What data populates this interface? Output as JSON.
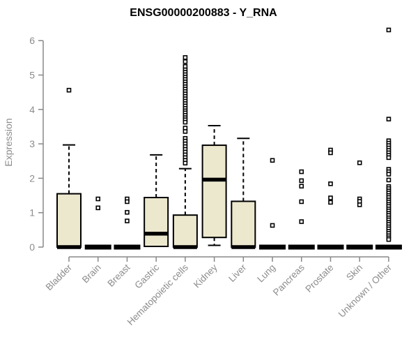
{
  "chart_data": {
    "type": "boxplot",
    "title": "ENSG00000200883 - Y_RNA",
    "ylabel": "Expression",
    "xlabel": "",
    "ylim": [
      0,
      6
    ],
    "yticks": [
      0,
      1,
      2,
      3,
      4,
      5,
      6
    ],
    "grid": false,
    "legend": "none",
    "colors": {
      "box_fill": "#ece8ce",
      "box_stroke": "#000000",
      "axis_line": "#888888",
      "tick_text": "#8c8c8c",
      "title_text": "#000000"
    },
    "categories": [
      "Bladder",
      "Brain",
      "Breast",
      "Gastric",
      "Hematopoietic cells",
      "Kidney",
      "Liver",
      "Lung",
      "Pancreas",
      "Prostate",
      "Skin",
      "Unknown / Other"
    ],
    "series": [
      {
        "label": "Bladder",
        "low": 0,
        "q1": 0,
        "median": 0,
        "q3": 1.55,
        "high": 2.97,
        "outliers": [
          4.56
        ]
      },
      {
        "label": "Brain",
        "low": 0,
        "q1": 0,
        "median": 0,
        "q3": 0,
        "high": 0,
        "outliers": [
          1.4,
          1.14
        ]
      },
      {
        "label": "Breast",
        "low": 0,
        "q1": 0,
        "median": 0,
        "q3": 0,
        "high": 0,
        "outliers": [
          1.4,
          1.32,
          1.01,
          0.76
        ]
      },
      {
        "label": "Gastric",
        "low": 0.02,
        "q1": 0.02,
        "median": 0.39,
        "q3": 1.44,
        "high": 2.68,
        "outliers": []
      },
      {
        "label": "Hematopoietic cells",
        "low": 0,
        "q1": 0,
        "median": 0,
        "q3": 0.93,
        "high": 2.28,
        "outliers": [
          5.51,
          5.39,
          5.25,
          5.15,
          5.08,
          5.01,
          4.94,
          4.87,
          4.8,
          4.73,
          4.66,
          4.59,
          4.52,
          4.45,
          4.38,
          4.31,
          4.24,
          4.17,
          4.1,
          4.03,
          3.96,
          3.9,
          3.83,
          3.76,
          3.7,
          3.63,
          3.46,
          3.36,
          3.16,
          3.08,
          3.0,
          2.92,
          2.84,
          2.76,
          2.68,
          2.6,
          2.52,
          2.44
        ]
      },
      {
        "label": "Kidney",
        "low": 0.05,
        "q1": 0.28,
        "median": 1.96,
        "q3": 2.96,
        "high": 3.53,
        "outliers": []
      },
      {
        "label": "Liver",
        "low": 0,
        "q1": 0,
        "median": 0,
        "q3": 1.33,
        "high": 3.16,
        "outliers": []
      },
      {
        "label": "Lung",
        "low": 0,
        "q1": 0,
        "median": 0,
        "q3": 0,
        "high": 0,
        "outliers": [
          2.52,
          0.63
        ]
      },
      {
        "label": "Pancreas",
        "low": 0,
        "q1": 0,
        "median": 0,
        "q3": 0,
        "high": 0,
        "outliers": [
          2.19,
          1.93,
          1.77,
          1.32,
          0.74
        ]
      },
      {
        "label": "Prostate",
        "low": 0,
        "q1": 0,
        "median": 0,
        "q3": 0,
        "high": 0,
        "outliers": [
          2.82,
          2.74,
          1.84,
          1.43,
          1.3
        ]
      },
      {
        "label": "Skin",
        "low": 0,
        "q1": 0,
        "median": 0,
        "q3": 0,
        "high": 0,
        "outliers": [
          2.45,
          1.4,
          1.33,
          1.23
        ]
      },
      {
        "label": "Unknown / Other",
        "low": 0,
        "q1": 0,
        "median": 0,
        "q3": 0,
        "high": 0,
        "outliers": [
          6.31,
          3.72,
          3.09,
          3.02,
          2.95,
          2.88,
          2.81,
          2.74,
          2.67,
          2.6,
          2.26,
          2.19,
          2.12,
          1.95,
          1.76,
          1.7,
          1.63,
          1.57,
          1.5,
          1.44,
          1.37,
          1.31,
          1.24,
          1.18,
          1.11,
          1.05,
          0.98,
          0.92,
          0.85,
          0.79,
          0.72,
          0.66,
          0.59,
          0.53,
          0.46,
          0.4,
          0.33,
          0.27,
          0.22
        ]
      }
    ]
  }
}
